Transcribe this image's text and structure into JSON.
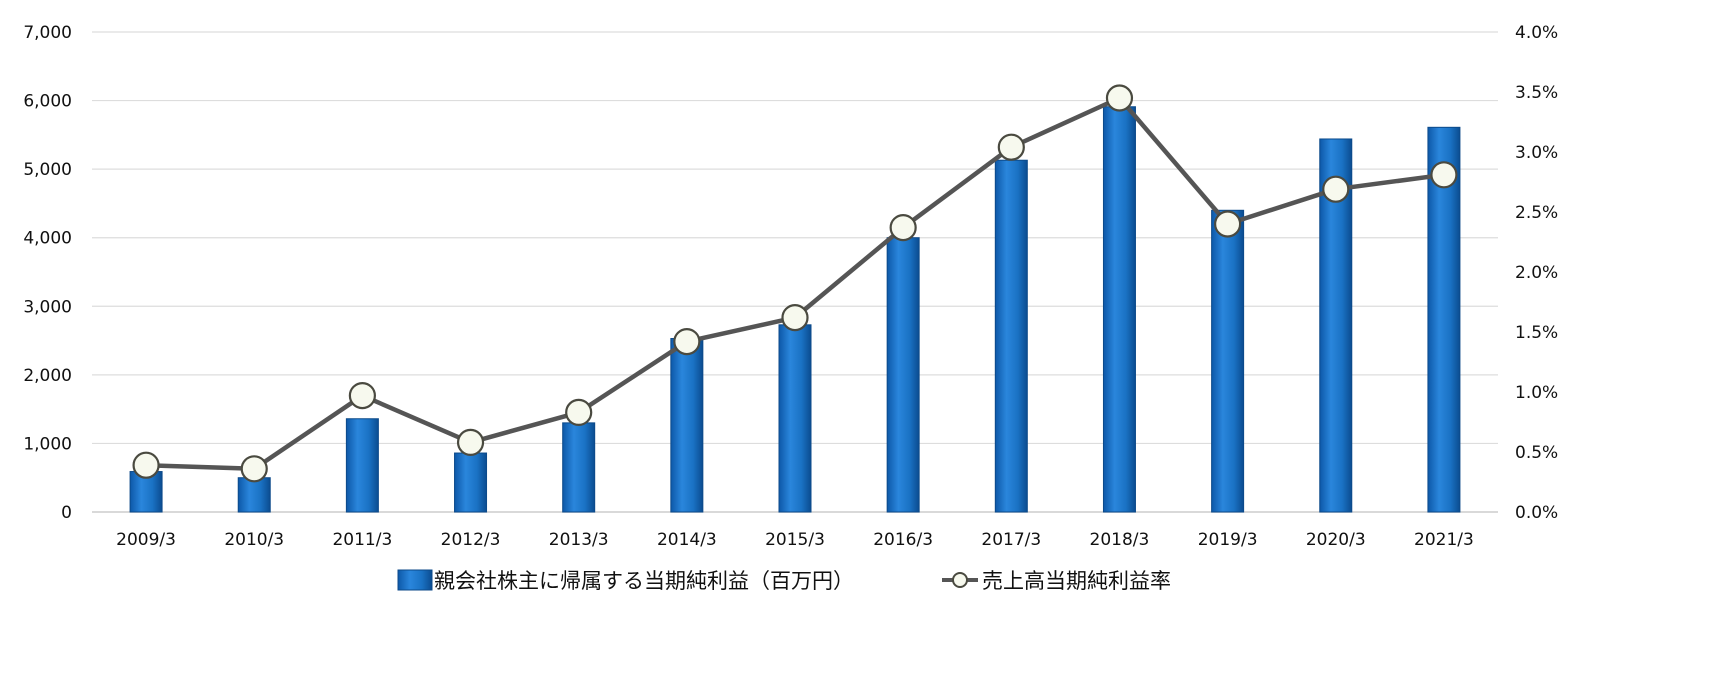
{
  "chart_data": {
    "type": "bar+line",
    "categories": [
      "2009/3",
      "2010/3",
      "2011/3",
      "2012/3",
      "2013/3",
      "2014/3",
      "2015/3",
      "2016/3",
      "2017/3",
      "2018/3",
      "2019/3",
      "2020/3",
      "2021/3"
    ],
    "series": [
      {
        "name": "親会社株主に帰属する当期純利益（百万円）",
        "type": "bar",
        "axis": "left",
        "values": [
          590,
          500,
          1360,
          860,
          1300,
          2530,
          2730,
          4000,
          5130,
          5910,
          4400,
          5440,
          5610
        ]
      },
      {
        "name": "売上高当期純利益率",
        "type": "line",
        "axis": "right",
        "values": [
          0.39,
          0.36,
          0.97,
          0.58,
          0.83,
          1.42,
          1.62,
          2.37,
          3.04,
          3.45,
          2.4,
          2.69,
          2.81
        ]
      }
    ],
    "y_left": {
      "min": 0,
      "max": 7000,
      "ticks": [
        "0",
        "1,000",
        "2,000",
        "3,000",
        "4,000",
        "5,000",
        "6,000",
        "7,000"
      ]
    },
    "y_right": {
      "min": 0,
      "max": 4.0,
      "ticks": [
        "0.0%",
        "0.5%",
        "1.0%",
        "1.5%",
        "2.0%",
        "2.5%",
        "3.0%",
        "3.5%",
        "4.0%"
      ]
    },
    "grid": true,
    "legend_position": "bottom-center",
    "colors": {
      "bar": "#1a72c4",
      "bar_dark": "#0c4a8a",
      "line": "#555555",
      "marker_fill": "#f7f9ee",
      "marker_stroke": "#4a4a40",
      "grid": "#dddddd"
    }
  }
}
